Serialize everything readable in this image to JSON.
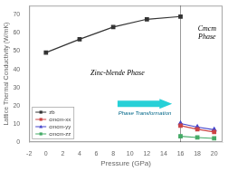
{
  "chart_data": {
    "type": "line",
    "xlabel": "Pressure (GPa)",
    "ylabel": "Lattice Thermal Conductivity (W/mK)",
    "series": [
      {
        "name": "zb",
        "color": "#333333",
        "marker": "square",
        "x": [
          0,
          4,
          8,
          12,
          16
        ],
        "values": [
          49.2,
          56.5,
          63.2,
          67.5,
          69.0
        ]
      },
      {
        "name": "cmcm-xx",
        "color": "#cc4444",
        "marker": "square",
        "x": [
          16,
          18,
          20
        ],
        "values": [
          9.0,
          7.0,
          5.5
        ]
      },
      {
        "name": "cmcm-yy",
        "color": "#4444cc",
        "marker": "triangle",
        "x": [
          16,
          18,
          20
        ],
        "values": [
          10.2,
          8.2,
          6.8
        ]
      },
      {
        "name": "cmcm-zz",
        "color": "#44aa66",
        "marker": "square",
        "x": [
          16,
          18,
          20
        ],
        "values": [
          3.2,
          2.5,
          2.0
        ]
      }
    ],
    "xlim": [
      -2,
      21
    ],
    "xticks": [
      -2,
      0,
      2,
      4,
      6,
      8,
      10,
      12,
      14,
      16,
      18,
      20
    ],
    "ylim": [
      0,
      75
    ],
    "yticks": [
      0,
      10,
      20,
      30,
      40,
      50,
      60,
      70
    ],
    "vline": 16,
    "grid": false,
    "legend": "lower left",
    "annotations": [
      "Zinc-blende Phase",
      "Cmcm\nPhase",
      "Phase Transformation"
    ]
  }
}
